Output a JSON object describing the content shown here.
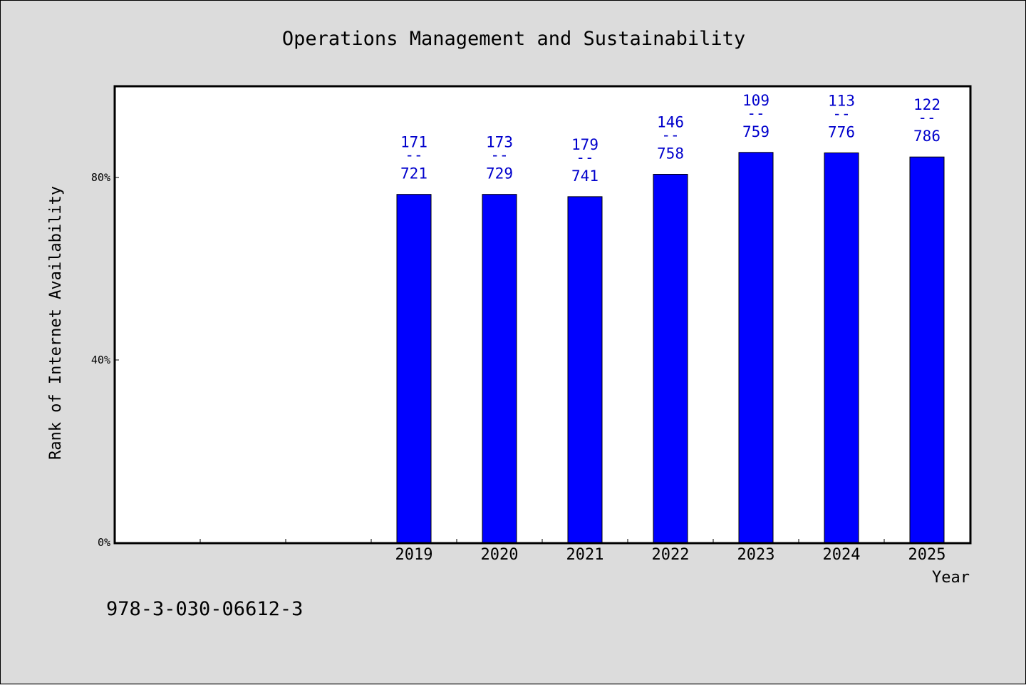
{
  "chart_data": {
    "type": "bar",
    "title": "Operations Management and Sustainability",
    "xlabel": "Year",
    "ylabel": "Rank of Internet Availability",
    "ylim": [
      0,
      100
    ],
    "yticks": [
      0,
      40,
      80
    ],
    "ytick_labels": [
      "0%",
      "40%",
      "80%"
    ],
    "categories": [
      "",
      "",
      "",
      "2019",
      "2020",
      "2021",
      "2022",
      "2023",
      "2024",
      "2025"
    ],
    "values": [
      null,
      null,
      null,
      76.3,
      76.3,
      75.8,
      80.7,
      85.5,
      85.4,
      84.5
    ],
    "data_labels": [
      null,
      null,
      null,
      {
        "top": "171",
        "sep": "--",
        "bottom": "721"
      },
      {
        "top": "173",
        "sep": "--",
        "bottom": "729"
      },
      {
        "top": "179",
        "sep": "--",
        "bottom": "741"
      },
      {
        "top": "146",
        "sep": "--",
        "bottom": "758"
      },
      {
        "top": "109",
        "sep": "--",
        "bottom": "759"
      },
      {
        "top": "113",
        "sep": "--",
        "bottom": "776"
      },
      {
        "top": "122",
        "sep": "--",
        "bottom": "786"
      }
    ],
    "bar_color": "#0000ff",
    "label_color": "#0000cc",
    "grid": false
  },
  "footnote": "978-3-030-06612-3"
}
